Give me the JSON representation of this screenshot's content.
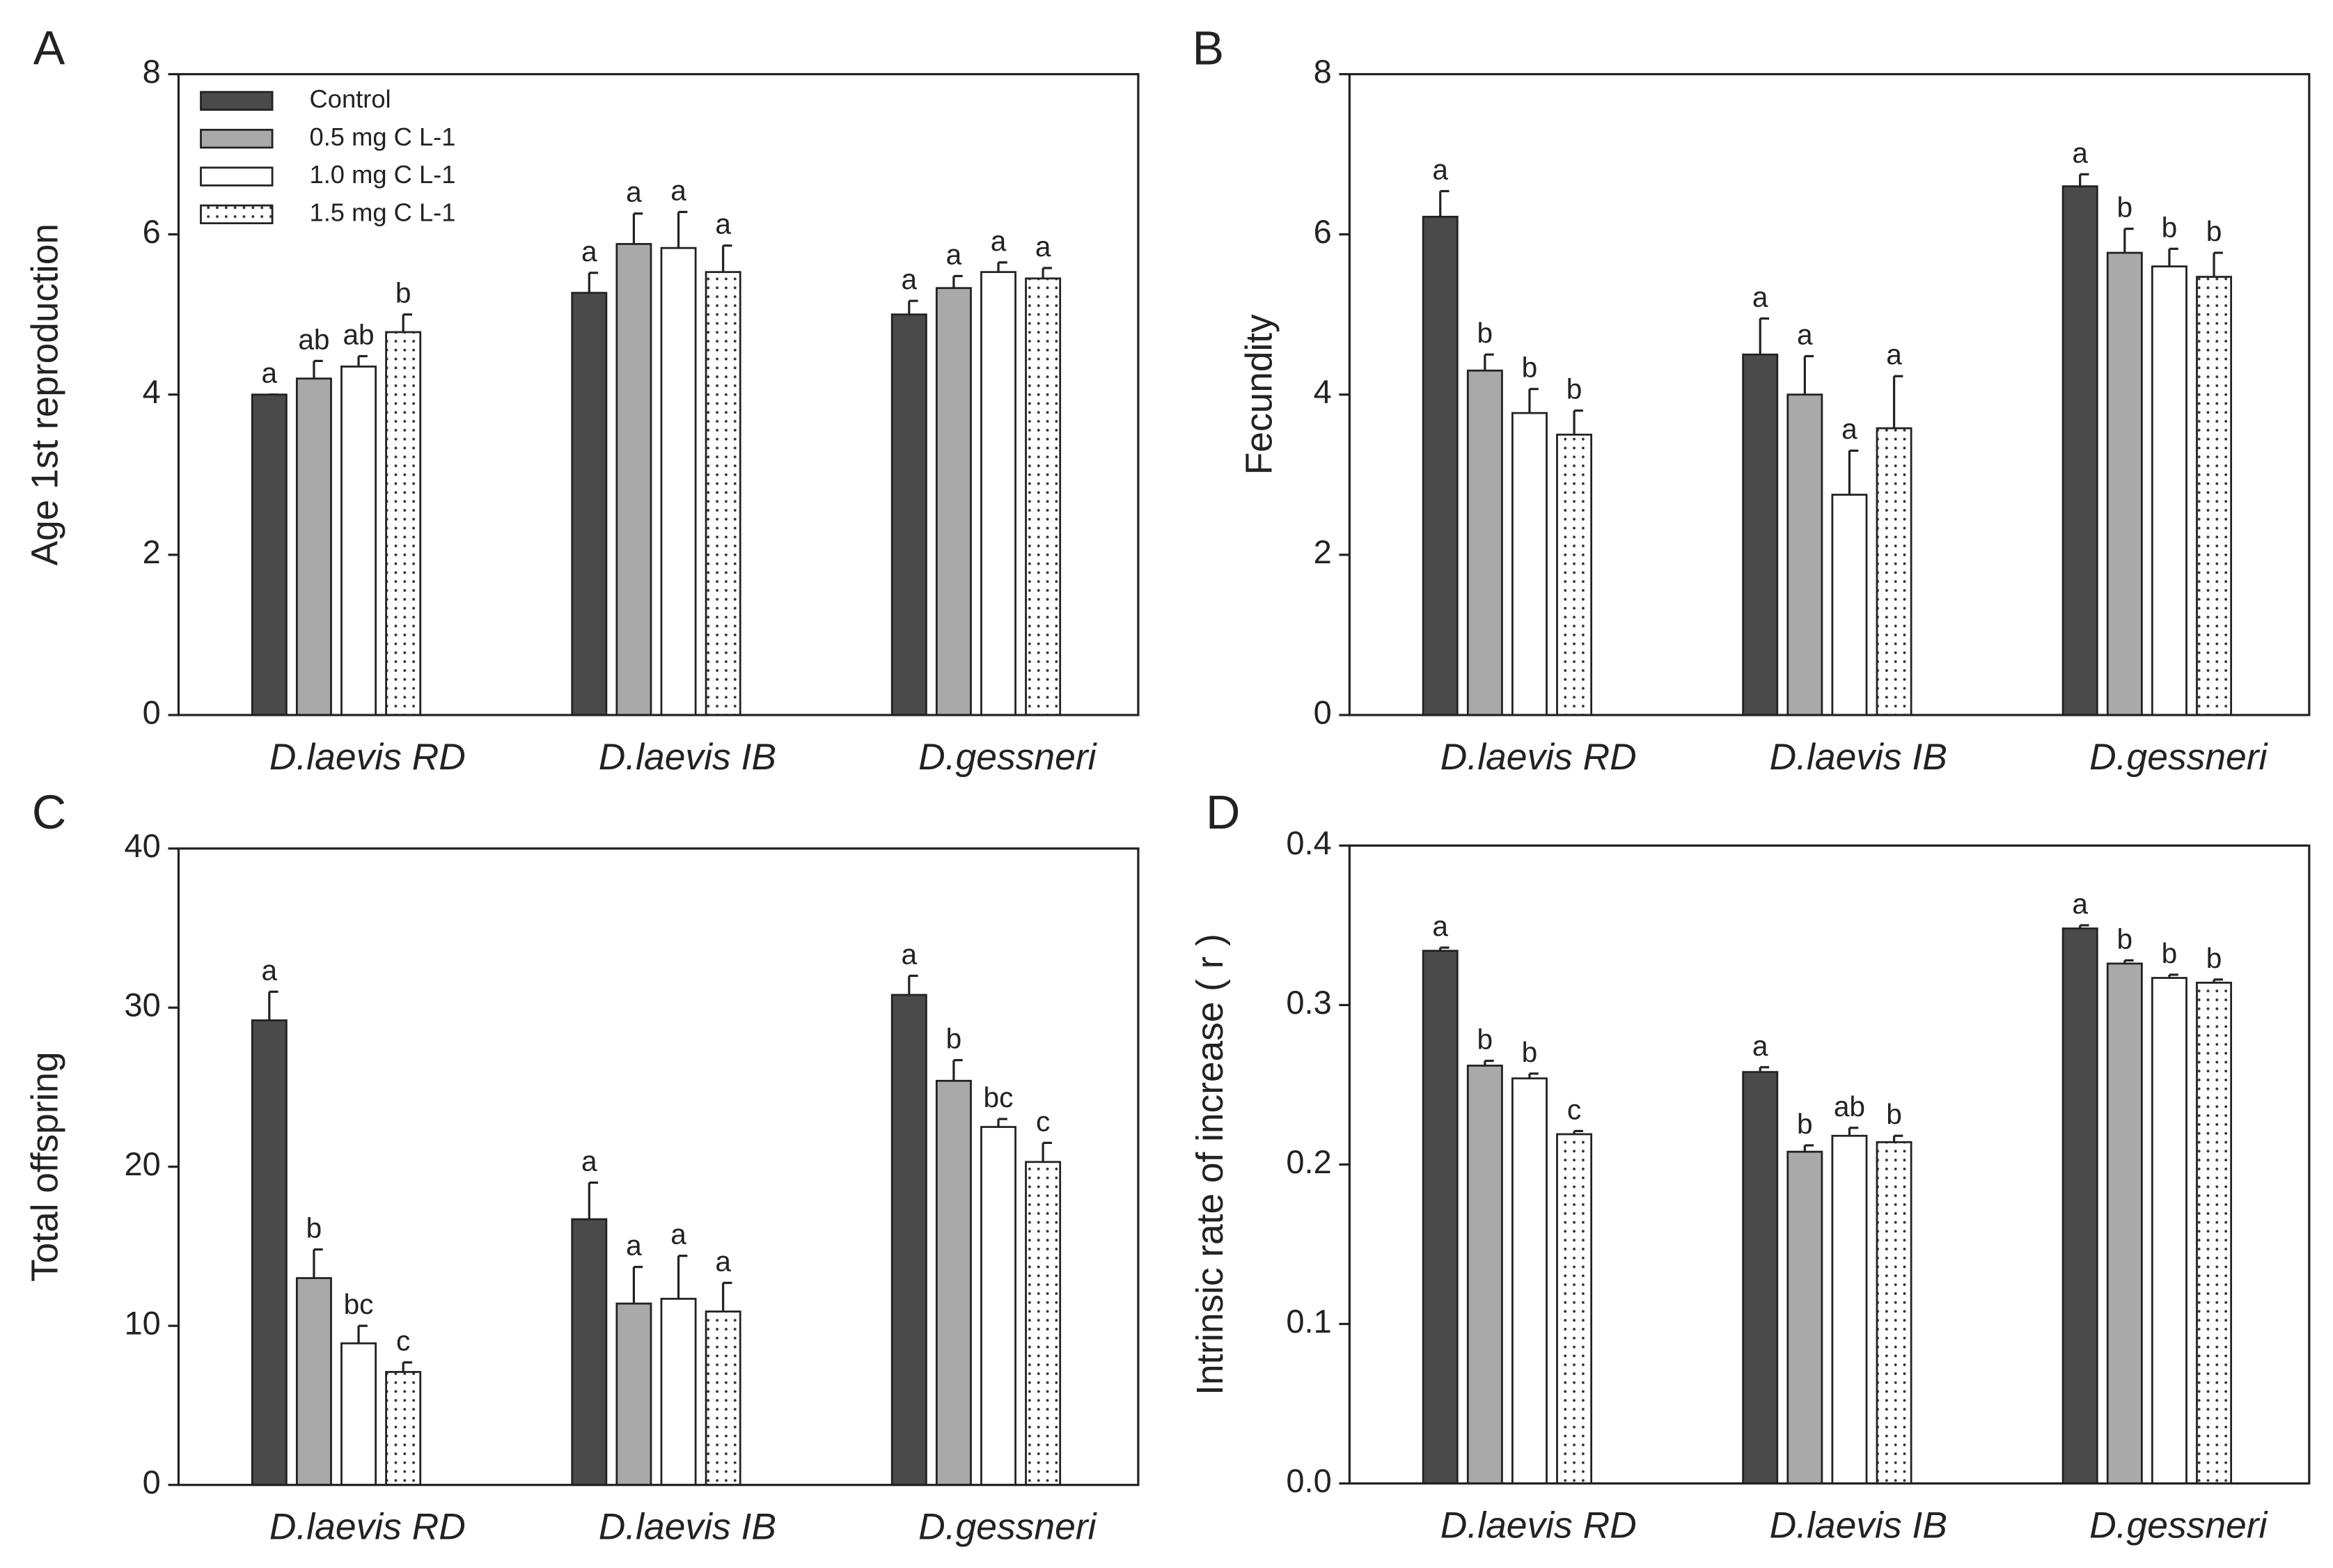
{
  "chart_data": [
    {
      "type": "bar",
      "panel": "A",
      "ylabel": "Age 1st reproduction",
      "categories": [
        "D.laevis RD",
        "D.laevis IB",
        "D.gessneri"
      ],
      "ylim": [
        0,
        8
      ],
      "yticks": [
        0,
        2,
        4,
        6,
        8
      ],
      "legend": "upper left",
      "series": [
        {
          "name": "Control",
          "color": "#4a4a4a",
          "values": [
            4.0,
            5.27,
            5.0
          ],
          "errors": [
            0,
            0.25,
            0.17
          ],
          "letters": [
            "a",
            "a",
            "a"
          ]
        },
        {
          "name": "0.5 mg C L-1",
          "color": "#a9a9a9",
          "values": [
            4.2,
            5.88,
            5.33
          ],
          "errors": [
            0.22,
            0.38,
            0.15
          ],
          "letters": [
            "ab",
            "a",
            "a"
          ]
        },
        {
          "name": "1.0 mg C L-1",
          "color": "#ffffff",
          "values": [
            4.35,
            5.83,
            5.53
          ],
          "errors": [
            0.13,
            0.45,
            0.12
          ],
          "letters": [
            "ab",
            "a",
            "a"
          ]
        },
        {
          "name": "1.5 mg C L-1",
          "color": "#ffffff",
          "pattern": "dots",
          "values": [
            4.78,
            5.53,
            5.45
          ],
          "errors": [
            0.22,
            0.33,
            0.13
          ],
          "letters": [
            "b",
            "a",
            "a"
          ]
        }
      ]
    },
    {
      "type": "bar",
      "panel": "B",
      "ylabel": "Fecundity",
      "categories": [
        "D.laevis RD",
        "D.laevis IB",
        "D.gessneri"
      ],
      "ylim": [
        0,
        8
      ],
      "yticks": [
        0,
        2,
        4,
        6,
        8
      ],
      "series": [
        {
          "color": "#4a4a4a",
          "values": [
            6.22,
            4.5,
            6.6
          ],
          "errors": [
            0.32,
            0.45,
            0.15
          ],
          "letters": [
            "a",
            "a",
            "a"
          ]
        },
        {
          "color": "#a9a9a9",
          "values": [
            4.3,
            4.0,
            5.77
          ],
          "errors": [
            0.2,
            0.48,
            0.3
          ],
          "letters": [
            "b",
            "a",
            "b"
          ]
        },
        {
          "color": "#ffffff",
          "values": [
            3.77,
            2.75,
            5.6
          ],
          "errors": [
            0.3,
            0.55,
            0.22
          ],
          "letters": [
            "b",
            "a",
            "b"
          ]
        },
        {
          "color": "#ffffff",
          "pattern": "dots",
          "values": [
            3.5,
            3.58,
            5.47
          ],
          "errors": [
            0.3,
            0.65,
            0.3
          ],
          "letters": [
            "b",
            "a",
            "b"
          ]
        }
      ]
    },
    {
      "type": "bar",
      "panel": "C",
      "ylabel": "Total offspring",
      "categories": [
        "D.laevis RD",
        "D.laevis IB",
        "D.gessneri"
      ],
      "ylim": [
        0,
        40
      ],
      "yticks": [
        0,
        10,
        20,
        30,
        40
      ],
      "series": [
        {
          "color": "#4a4a4a",
          "values": [
            29.2,
            16.7,
            30.8
          ],
          "errors": [
            1.8,
            2.3,
            1.2
          ],
          "letters": [
            "a",
            "a",
            "a"
          ]
        },
        {
          "color": "#a9a9a9",
          "values": [
            13.0,
            11.4,
            25.4
          ],
          "errors": [
            1.8,
            2.3,
            1.3
          ],
          "letters": [
            "b",
            "a",
            "b"
          ]
        },
        {
          "color": "#ffffff",
          "values": [
            8.9,
            11.7,
            22.5
          ],
          "errors": [
            1.1,
            2.7,
            0.5
          ],
          "letters": [
            "bc",
            "a",
            "bc"
          ]
        },
        {
          "color": "#ffffff",
          "pattern": "dots",
          "values": [
            7.1,
            10.9,
            20.3
          ],
          "errors": [
            0.6,
            1.8,
            1.2
          ],
          "letters": [
            "c",
            "a",
            "c"
          ]
        }
      ]
    },
    {
      "type": "bar",
      "panel": "D",
      "ylabel": "Intrinsic rate of increase ( r )",
      "categories": [
        "D.laevis RD",
        "D.laevis IB",
        "D.gessneri"
      ],
      "ylim": [
        0,
        0.4
      ],
      "yticks": [
        {
          "value": 0,
          "label": "0.0"
        },
        0.1,
        0.2,
        0.3,
        0.4
      ],
      "series": [
        {
          "color": "#4a4a4a",
          "values": [
            0.334,
            0.258,
            0.348
          ],
          "errors": [
            0.002,
            0.003,
            0.002
          ],
          "letters": [
            "a",
            "a",
            "a"
          ]
        },
        {
          "color": "#a9a9a9",
          "values": [
            0.262,
            0.208,
            0.326
          ],
          "errors": [
            0.003,
            0.004,
            0.002
          ],
          "letters": [
            "b",
            "b",
            "b"
          ]
        },
        {
          "color": "#ffffff",
          "values": [
            0.254,
            0.218,
            0.317
          ],
          "errors": [
            0.003,
            0.005,
            0.002
          ],
          "letters": [
            "b",
            "ab",
            "b"
          ]
        },
        {
          "color": "#ffffff",
          "pattern": "dots",
          "values": [
            0.219,
            0.214,
            0.314
          ],
          "errors": [
            0.002,
            0.004,
            0.002
          ],
          "letters": [
            "c",
            "b",
            "b"
          ]
        }
      ]
    }
  ]
}
